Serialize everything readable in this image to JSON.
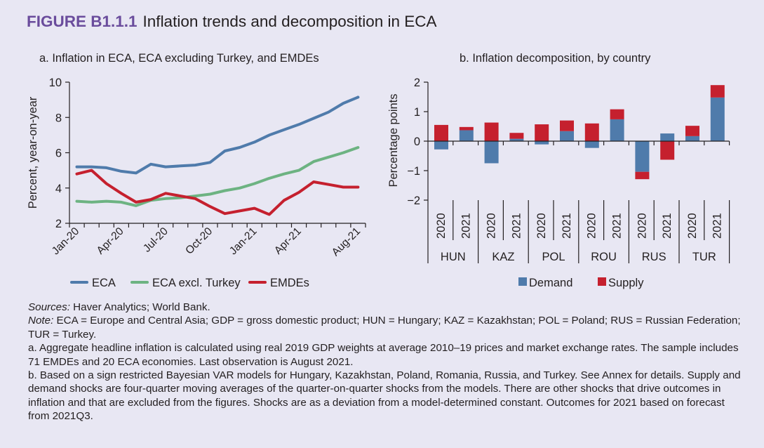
{
  "figure": {
    "number": "FIGURE B1.1.1",
    "title": "Inflation trends and decomposition in ECA",
    "accent_color": "#6a4c9c"
  },
  "chart_data": [
    {
      "type": "line",
      "panel_title": "a. Inflation in ECA, ECA excluding Turkey, and EMDEs",
      "ylabel": "Percent, year-on-year",
      "xlabel": "",
      "ylim": [
        2,
        10
      ],
      "yticks": [
        2,
        4,
        6,
        8,
        10
      ],
      "x": [
        "Jan-20",
        "Feb-20",
        "Mar-20",
        "Apr-20",
        "May-20",
        "Jun-20",
        "Jul-20",
        "Aug-20",
        "Sep-20",
        "Oct-20",
        "Nov-20",
        "Dec-20",
        "Jan-21",
        "Feb-21",
        "Mar-21",
        "Apr-21",
        "May-21",
        "Jun-21",
        "Jul-21",
        "Aug-21"
      ],
      "xtick_labels": [
        "Jan-20",
        "Apr-20",
        "Jul-20",
        "Oct-20",
        "Jan-21",
        "Apr-21",
        "Aug-21"
      ],
      "xtick_label_indices": [
        0,
        3,
        6,
        9,
        12,
        15,
        19
      ],
      "legend_position": "bottom",
      "grid": false,
      "series": [
        {
          "name": "ECA",
          "color": "#4f7bab",
          "values": [
            5.2,
            5.2,
            5.15,
            4.95,
            4.85,
            5.35,
            5.2,
            5.25,
            5.3,
            5.45,
            6.1,
            6.3,
            6.6,
            7.0,
            7.3,
            7.6,
            7.95,
            8.3,
            8.8,
            9.15
          ]
        },
        {
          "name": "ECA excl. Turkey",
          "color": "#6db382",
          "values": [
            3.25,
            3.2,
            3.25,
            3.2,
            3.0,
            3.3,
            3.4,
            3.45,
            3.55,
            3.65,
            3.85,
            4.0,
            4.25,
            4.55,
            4.8,
            5.0,
            5.5,
            5.75,
            6.0,
            6.3
          ]
        },
        {
          "name": "EMDEs",
          "color": "#c5202e",
          "values": [
            4.8,
            5.0,
            4.25,
            3.7,
            3.2,
            3.35,
            3.7,
            3.55,
            3.4,
            2.95,
            2.55,
            2.7,
            2.85,
            2.5,
            3.3,
            3.75,
            4.35,
            4.2,
            4.05,
            4.05
          ]
        }
      ]
    },
    {
      "type": "bar",
      "stacked": true,
      "panel_title": "b. Inflation decomposition, by country",
      "ylabel": "Percentage points",
      "xlabel": "",
      "ylim": [
        -2,
        2
      ],
      "yticks": [
        -2,
        -1,
        0,
        1,
        2
      ],
      "ytick_labels": [
        "−2",
        "−1",
        "0",
        "1",
        "2"
      ],
      "groups": [
        "HUN",
        "KAZ",
        "POL",
        "ROU",
        "RUS",
        "TUR"
      ],
      "categories": [
        "2020",
        "2021"
      ],
      "legend_position": "bottom",
      "grid": false,
      "series": [
        {
          "name": "Demand",
          "color": "#4f7bab",
          "values": [
            -0.28,
            0.37,
            -0.75,
            0.08,
            -0.11,
            0.34,
            -0.23,
            0.74,
            -1.04,
            0.26,
            0.17,
            1.48
          ]
        },
        {
          "name": "Supply",
          "color": "#c5202e",
          "values": [
            0.55,
            0.11,
            0.63,
            0.2,
            0.57,
            0.36,
            0.6,
            0.34,
            -0.25,
            -0.63,
            0.35,
            0.42
          ]
        }
      ]
    }
  ],
  "notes": {
    "sources_label": "Sources:",
    "sources_text": " Haver Analytics; World Bank.",
    "note_label": "Note:",
    "note_text": " ECA = Europe and Central Asia; GDP = gross domestic product; HUN = Hungary; KAZ = Kazakhstan; POL = Poland; RUS = Russian Federation; TUR = Turkey.",
    "a_text": "a. Aggregate headline inflation is calculated using real 2019 GDP weights at average 2010–19 prices and market exchange rates. The sample includes 71 EMDEs and 20 ECA economies. Last observation is August 2021.",
    "b_text": "b. Based on a sign restricted Bayesian VAR models for Hungary, Kazakhstan, Poland, Romania, Russia, and Turkey. See Annex for details. Supply and demand shocks are four-quarter moving averages of the quarter-on-quarter shocks from the models. There are other shocks that drive outcomes in inflation and that are excluded from the figures. Shocks are as a deviation from a model-determined constant. Outcomes for 2021 based on forecast from 2021Q3."
  }
}
